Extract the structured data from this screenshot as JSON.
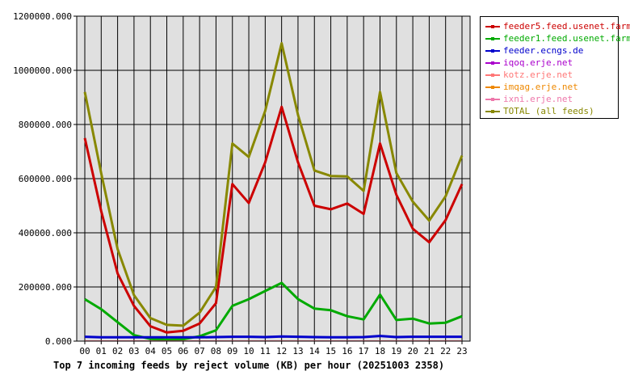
{
  "caption": "Top 7 incoming feeds by reject volume (KB) per hour (20251003 2358)",
  "chart_data": {
    "type": "line",
    "title": "Top 7 incoming feeds by reject volume (KB) per hour (20251003 2358)",
    "xlabel": "",
    "ylabel": "",
    "ylim": [
      0,
      1200000
    ],
    "y_ticks": [
      "0.000",
      "200000.000",
      "400000.000",
      "600000.000",
      "800000.000",
      "1000000.000",
      "1200000.000"
    ],
    "y_tick_values": [
      0,
      200000,
      400000,
      600000,
      800000,
      1000000,
      1200000
    ],
    "grid": true,
    "legend_position": "right",
    "x": [
      "00",
      "01",
      "02",
      "03",
      "04",
      "05",
      "06",
      "07",
      "08",
      "09",
      "10",
      "11",
      "12",
      "13",
      "14",
      "15",
      "16",
      "17",
      "18",
      "19",
      "20",
      "21",
      "22",
      "23"
    ],
    "series": [
      {
        "name": "feeder5.feed.usenet.farm",
        "color": "#cc0000",
        "values": [
          750000,
          480000,
          250000,
          130000,
          55000,
          32000,
          38000,
          65000,
          140000,
          580000,
          510000,
          660000,
          865000,
          660000,
          500000,
          487000,
          508000,
          470000,
          730000,
          540000,
          415000,
          365000,
          447000,
          580000
        ]
      },
      {
        "name": "feeder1.feed.usenet.farm",
        "color": "#00aa00",
        "values": [
          155000,
          118000,
          70000,
          22000,
          8000,
          5000,
          7000,
          18000,
          40000,
          130000,
          155000,
          185000,
          215000,
          155000,
          120000,
          114000,
          92000,
          80000,
          172000,
          78000,
          83000,
          65000,
          68000,
          92000
        ]
      },
      {
        "name": "feeder.ecngs.de",
        "color": "#0000cc",
        "values": [
          16000,
          14000,
          14000,
          14000,
          14000,
          14000,
          14000,
          14000,
          15000,
          16000,
          16000,
          15000,
          17000,
          16000,
          15000,
          14000,
          14000,
          15000,
          19000,
          15000,
          16000,
          16000,
          16000,
          16000
        ]
      },
      {
        "name": "iqoq.erje.net",
        "color": "#aa00cc",
        "values": [
          1000,
          1000,
          1000,
          1000,
          1000,
          1000,
          1000,
          1000,
          1000,
          1000,
          1000,
          1000,
          1000,
          1000,
          1000,
          1000,
          1000,
          1000,
          1000,
          1000,
          1000,
          1000,
          1000,
          1000
        ]
      },
      {
        "name": "kotz.erje.net",
        "color": "#ff7777",
        "values": [
          500,
          500,
          500,
          500,
          500,
          500,
          500,
          500,
          500,
          500,
          500,
          500,
          500,
          500,
          500,
          500,
          500,
          500,
          500,
          500,
          500,
          500,
          500,
          500
        ]
      },
      {
        "name": "imqag.erje.net",
        "color": "#ee8800",
        "values": [
          400,
          400,
          400,
          400,
          400,
          400,
          400,
          400,
          400,
          400,
          400,
          400,
          400,
          400,
          400,
          400,
          400,
          400,
          400,
          400,
          400,
          400,
          400,
          400
        ]
      },
      {
        "name": "ixni.erje.net",
        "color": "#ee77aa",
        "values": [
          300,
          300,
          300,
          300,
          300,
          300,
          300,
          300,
          300,
          300,
          300,
          300,
          300,
          300,
          300,
          300,
          300,
          300,
          300,
          300,
          300,
          300,
          300,
          300
        ]
      },
      {
        "name": "TOTAL (all feeds)",
        "color": "#888800",
        "values": [
          920000,
          620000,
          340000,
          170000,
          85000,
          60000,
          57000,
          105000,
          200000,
          730000,
          680000,
          850000,
          1100000,
          835000,
          630000,
          610000,
          608000,
          555000,
          920000,
          620000,
          515000,
          445000,
          535000,
          685000
        ]
      }
    ]
  }
}
